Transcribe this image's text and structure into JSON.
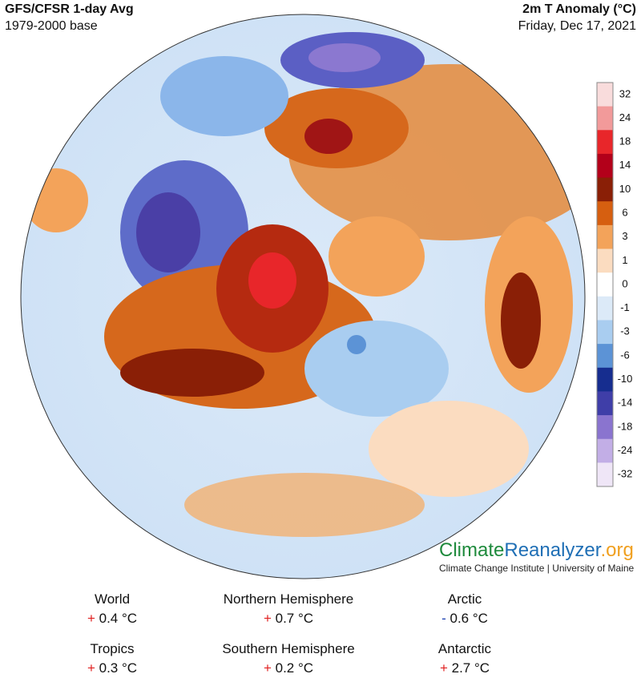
{
  "header": {
    "left_title": "GFS/CFSR 1-day Avg",
    "left_subtitle": "1979-2000 base",
    "right_title": "2m T Anomaly (°C)",
    "right_subtitle": "Friday, Dec 17, 2021"
  },
  "colorbar": {
    "labels": [
      "32",
      "24",
      "18",
      "14",
      "10",
      "6",
      "3",
      "1",
      "0",
      "-1",
      "-3",
      "-6",
      "-10",
      "-14",
      "-18",
      "-24",
      "-32"
    ],
    "colors": [
      "#f9dcdc",
      "#f29a9a",
      "#e8262a",
      "#b3001a",
      "#8a1f06",
      "#d65f10",
      "#f3a35a",
      "#fbdcc0",
      "#ffffff",
      "#dceaf8",
      "#a9cdf0",
      "#5c93d6",
      "#162d8f",
      "#3f3ea8",
      "#8a74cf",
      "#c2aee6",
      "#efe6f7"
    ]
  },
  "branding": {
    "name_parts": [
      "Climate",
      "Reanalyzer",
      ".org"
    ],
    "name_colors": [
      "#1e8a3c",
      "#1f6fb5",
      "#f0a020"
    ],
    "tagline": "Climate Change Institute | University of Maine"
  },
  "stats": [
    {
      "region": "World",
      "sign": "+",
      "value": "0.4 °C",
      "sign_color": "#e02020"
    },
    {
      "region": "Northern Hemisphere",
      "sign": "+",
      "value": "0.7 °C",
      "sign_color": "#e02020"
    },
    {
      "region": "Arctic",
      "sign": "-",
      "value": "0.6 °C",
      "sign_color": "#1a3fb0"
    },
    {
      "region": "Tropics",
      "sign": "+",
      "value": "0.3 °C",
      "sign_color": "#e02020"
    },
    {
      "region": "Southern Hemisphere",
      "sign": "+",
      "value": "0.2 °C",
      "sign_color": "#e02020"
    },
    {
      "region": "Antarctic",
      "sign": "+",
      "value": "2.7 °C",
      "sign_color": "#e02020"
    }
  ]
}
